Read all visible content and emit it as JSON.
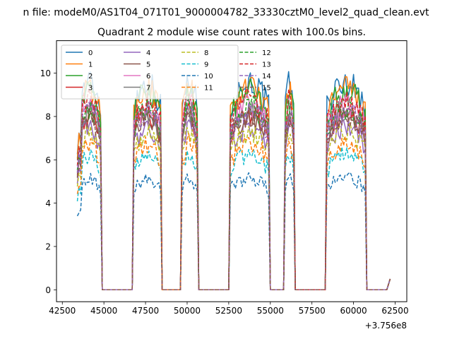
{
  "chart_data": {
    "type": "line",
    "suptitle": "n file: modeM0/AS1T04_071T01_9000004782_33330cztM0_level2_quad_clean.evt",
    "title": "Quadrant 2 module wise count rates with 100.0s bins.",
    "xlabel": "",
    "ylabel": "",
    "offset_label": "+3.756e8",
    "xlim": [
      42150,
      63200
    ],
    "ylim": [
      -0.55,
      11.5
    ],
    "xticks": [
      42500,
      45000,
      47500,
      50000,
      52500,
      55000,
      57500,
      60000,
      62500
    ],
    "xtick_labels": [
      "42500",
      "45000",
      "47500",
      "50000",
      "52500",
      "55000",
      "57500",
      "60000",
      "62500"
    ],
    "yticks": [
      0,
      2,
      4,
      6,
      8,
      10
    ],
    "ytick_labels": [
      "0",
      "2",
      "4",
      "6",
      "8",
      "10"
    ],
    "legend_position": "upper-left",
    "legend_columns": 4,
    "segments": [
      {
        "start": 43400,
        "end": 44800,
        "gap_end": 46700
      },
      {
        "start": 46800,
        "end": 48400,
        "gap_end": 49600
      },
      {
        "start": 49700,
        "end": 50600,
        "gap_end": 52500
      },
      {
        "start": 52600,
        "end": 54900,
        "gap_end": 55800
      },
      {
        "start": 55900,
        "end": 56400,
        "gap_end": 58300
      },
      {
        "start": 58400,
        "end": 60700,
        "gap_end": 62000
      }
    ],
    "end_point": {
      "x": 62200,
      "y": 0.5
    },
    "series": [
      {
        "name": "0",
        "color": "#1f77b4",
        "dash": "solid",
        "level": 9.2
      },
      {
        "name": "1",
        "color": "#ff7f0e",
        "dash": "solid",
        "level": 8.9
      },
      {
        "name": "2",
        "color": "#2ca02c",
        "dash": "solid",
        "level": 8.8
      },
      {
        "name": "3",
        "color": "#d62728",
        "dash": "solid",
        "level": 7.8
      },
      {
        "name": "4",
        "color": "#9467bd",
        "dash": "solid",
        "level": 7.2
      },
      {
        "name": "5",
        "color": "#8c564b",
        "dash": "solid",
        "level": 7.6
      },
      {
        "name": "6",
        "color": "#e377c2",
        "dash": "solid",
        "level": 8.2
      },
      {
        "name": "7",
        "color": "#7f7f7f",
        "dash": "solid",
        "level": 8.0
      },
      {
        "name": "8",
        "color": "#bcbd22",
        "dash": "dashed",
        "level": 7.0
      },
      {
        "name": "9",
        "color": "#17becf",
        "dash": "dashed",
        "level": 6.0
      },
      {
        "name": "10",
        "color": "#1f77b4",
        "dash": "dashed",
        "level": 5.0
      },
      {
        "name": "11",
        "color": "#ff7f0e",
        "dash": "dashed",
        "level": 6.5
      },
      {
        "name": "12",
        "color": "#2ca02c",
        "dash": "dashed",
        "level": 8.1
      },
      {
        "name": "13",
        "color": "#d62728",
        "dash": "dashed",
        "level": 8.4
      },
      {
        "name": "14",
        "color": "#9467bd",
        "dash": "dashed",
        "level": 7.9
      },
      {
        "name": "15",
        "color": "#8c564b",
        "dash": "dashed",
        "level": 7.7
      }
    ]
  }
}
